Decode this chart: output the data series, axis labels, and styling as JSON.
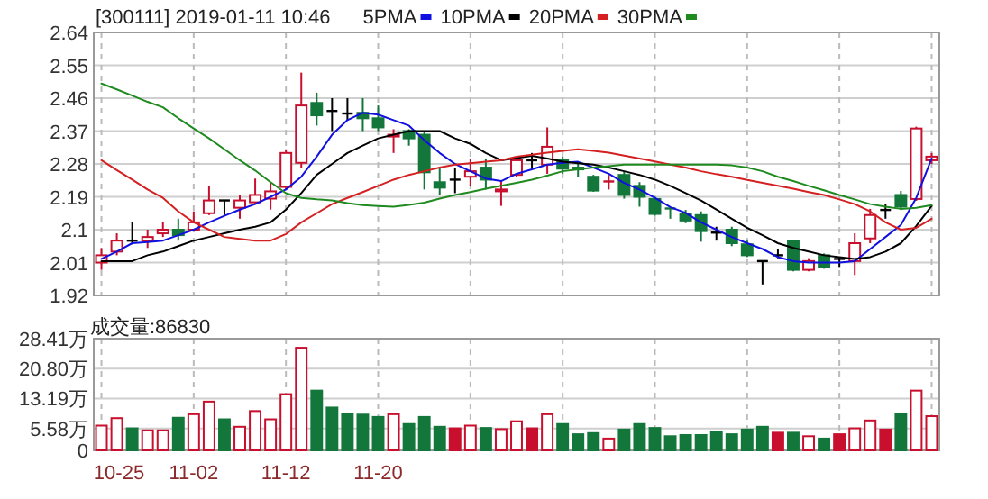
{
  "chart_data": [
    {
      "type": "candlestick",
      "title": "[300111] 2019-01-11 10:46",
      "legend": "top",
      "grid": true,
      "tick_labels": "y",
      "categories": [
        null,
        null,
        null,
        null,
        null,
        null,
        null,
        null,
        null,
        null,
        null,
        null,
        null,
        null,
        null,
        null,
        null,
        null,
        null,
        null,
        null,
        null,
        null,
        null,
        null,
        null,
        null,
        null,
        null,
        null,
        null,
        null,
        null,
        null,
        null,
        null,
        null,
        null,
        null,
        null,
        null,
        null,
        null,
        null,
        null,
        null,
        null,
        null,
        null,
        null,
        null,
        null,
        null,
        null,
        null
      ],
      "ylim": [
        1.92,
        2.64
      ],
      "yticks": [
        1.92,
        2.01,
        2.1,
        2.19,
        2.28,
        2.37,
        2.46,
        2.55,
        2.64
      ],
      "ohlc": [
        [
          2.01,
          2.05,
          1.99,
          2.03
        ],
        [
          2.04,
          2.09,
          2.03,
          2.07
        ],
        [
          2.07,
          2.12,
          2.06,
          2.07
        ],
        [
          2.07,
          2.1,
          2.05,
          2.08
        ],
        [
          2.09,
          2.12,
          2.08,
          2.1
        ],
        [
          2.1,
          2.13,
          2.07,
          2.085
        ],
        [
          2.1,
          2.15,
          2.1,
          2.12
        ],
        [
          2.145,
          2.22,
          2.14,
          2.18
        ],
        [
          2.18,
          2.18,
          2.14,
          2.18
        ],
        [
          2.16,
          2.195,
          2.13,
          2.18
        ],
        [
          2.175,
          2.24,
          2.17,
          2.195
        ],
        [
          2.185,
          2.23,
          2.155,
          2.205
        ],
        [
          2.217,
          2.32,
          2.21,
          2.31
        ],
        [
          2.283,
          2.53,
          2.27,
          2.44
        ],
        [
          2.447,
          2.475,
          2.385,
          2.413
        ],
        [
          2.425,
          2.46,
          2.37,
          2.425
        ],
        [
          2.418,
          2.46,
          2.4,
          2.418
        ],
        [
          2.42,
          2.46,
          2.37,
          2.405
        ],
        [
          2.405,
          2.44,
          2.37,
          2.38
        ],
        [
          2.355,
          2.375,
          2.31,
          2.36
        ],
        [
          2.37,
          2.375,
          2.33,
          2.35
        ],
        [
          2.36,
          2.37,
          2.21,
          2.257
        ],
        [
          2.23,
          2.27,
          2.195,
          2.215
        ],
        [
          2.237,
          2.27,
          2.2,
          2.237
        ],
        [
          2.245,
          2.295,
          2.22,
          2.26
        ],
        [
          2.27,
          2.295,
          2.21,
          2.237
        ],
        [
          2.205,
          2.235,
          2.165,
          2.21
        ],
        [
          2.25,
          2.3,
          2.245,
          2.29
        ],
        [
          2.29,
          2.31,
          2.265,
          2.29
        ],
        [
          2.278,
          2.38,
          2.253,
          2.327
        ],
        [
          2.29,
          2.3,
          2.253,
          2.267
        ],
        [
          2.27,
          2.28,
          2.245,
          2.265
        ],
        [
          2.245,
          2.25,
          2.204,
          2.207
        ],
        [
          2.23,
          2.25,
          2.21,
          2.232
        ],
        [
          2.25,
          2.26,
          2.185,
          2.195
        ],
        [
          2.22,
          2.23,
          2.163,
          2.19
        ],
        [
          2.184,
          2.19,
          2.138,
          2.143
        ],
        [
          2.16,
          2.16,
          2.13,
          2.158
        ],
        [
          2.144,
          2.154,
          2.118,
          2.125
        ],
        [
          2.14,
          2.15,
          2.067,
          2.096
        ],
        [
          2.092,
          2.108,
          2.07,
          2.092
        ],
        [
          2.1,
          2.108,
          2.055,
          2.063
        ],
        [
          2.06,
          2.07,
          2.025,
          2.03
        ],
        [
          2.014,
          2.014,
          1.95,
          2.014
        ],
        [
          2.03,
          2.047,
          2.022,
          2.03
        ],
        [
          2.068,
          2.072,
          1.986,
          1.99
        ],
        [
          1.99,
          2.022,
          1.986,
          2.014
        ],
        [
          2.03,
          2.035,
          1.993,
          1.998
        ],
        [
          2.02,
          2.026,
          1.998,
          2.02
        ],
        [
          2.014,
          2.09,
          1.976,
          2.063
        ],
        [
          2.076,
          2.157,
          2.063,
          2.14
        ],
        [
          2.154,
          2.17,
          2.13,
          2.154
        ],
        [
          2.195,
          2.206,
          2.154,
          2.163
        ],
        [
          2.184,
          2.382,
          2.179,
          2.377
        ],
        [
          2.29,
          2.31,
          2.28,
          2.3
        ]
      ],
      "colors": [
        "#c8102e",
        "#c8102e",
        "#000000",
        "#c8102e",
        "#c8102e",
        "#13773b",
        "#c8102e",
        "#c8102e",
        "#000000",
        "#c8102e",
        "#c8102e",
        "#c8102e",
        "#c8102e",
        "#c8102e",
        "#13773b",
        "#000000",
        "#000000",
        "#13773b",
        "#13773b",
        "#c8102e",
        "#13773b",
        "#13773b",
        "#13773b",
        "#000000",
        "#c8102e",
        "#13773b",
        "#c8102e",
        "#c8102e",
        "#000000",
        "#c8102e",
        "#13773b",
        "#13773b",
        "#13773b",
        "#c8102e",
        "#13773b",
        "#13773b",
        "#13773b",
        "#13773b",
        "#13773b",
        "#13773b",
        "#000000",
        "#13773b",
        "#13773b",
        "#000000",
        "#000000",
        "#13773b",
        "#c8102e",
        "#13773b",
        "#000000",
        "#c8102e",
        "#c8102e",
        "#000000",
        "#13773b",
        "#c8102e",
        "#c8102e"
      ],
      "series": [
        {
          "name": "5PMA",
          "type": "line",
          "color": "#1010e0",
          "values": [
            2.02,
            2.04,
            2.063,
            2.066,
            2.07,
            2.085,
            2.1,
            2.12,
            2.138,
            2.155,
            2.17,
            2.19,
            2.21,
            2.245,
            2.3,
            2.36,
            2.4,
            2.42,
            2.415,
            2.4,
            2.385,
            2.345,
            2.31,
            2.28,
            2.26,
            2.24,
            2.233,
            2.253,
            2.265,
            2.278,
            2.283,
            2.286,
            2.27,
            2.253,
            2.228,
            2.21,
            2.187,
            2.162,
            2.146,
            2.12,
            2.1,
            2.08,
            2.063,
            2.047,
            2.025,
            2.014,
            2.01,
            2.01,
            2.01,
            2.014,
            2.047,
            2.08,
            2.113,
            2.187,
            2.295
          ]
        },
        {
          "name": "10PMA",
          "type": "line",
          "color": "#000000",
          "values": [
            2.014,
            2.014,
            2.014,
            2.03,
            2.04,
            2.055,
            2.07,
            2.08,
            2.09,
            2.1,
            2.108,
            2.12,
            2.155,
            2.2,
            2.25,
            2.28,
            2.31,
            2.33,
            2.35,
            2.36,
            2.37,
            2.37,
            2.37,
            2.35,
            2.335,
            2.31,
            2.29,
            2.296,
            2.302,
            2.295,
            2.286,
            2.282,
            2.278,
            2.27,
            2.26,
            2.25,
            2.237,
            2.22,
            2.2,
            2.18,
            2.155,
            2.13,
            2.105,
            2.085,
            2.063,
            2.05,
            2.04,
            2.03,
            2.025,
            2.02,
            2.025,
            2.04,
            2.063,
            2.11,
            2.165
          ]
        },
        {
          "name": "20PMA",
          "type": "line",
          "color": "#d42020",
          "values": [
            2.29,
            2.263,
            2.237,
            2.21,
            2.187,
            2.15,
            2.12,
            2.1,
            2.08,
            2.075,
            2.07,
            2.07,
            2.088,
            2.12,
            2.145,
            2.17,
            2.187,
            2.203,
            2.22,
            2.237,
            2.25,
            2.26,
            2.27,
            2.278,
            2.282,
            2.286,
            2.29,
            2.3,
            2.305,
            2.311,
            2.316,
            2.32,
            2.316,
            2.311,
            2.303,
            2.295,
            2.287,
            2.278,
            2.27,
            2.26,
            2.252,
            2.245,
            2.236,
            2.228,
            2.22,
            2.212,
            2.203,
            2.195,
            2.183,
            2.17,
            2.15,
            2.12,
            2.1,
            2.105,
            2.13
          ]
        },
        {
          "name": "30PMA",
          "type": "line",
          "color": "#1f8a1f",
          "values": [
            2.5,
            2.484,
            2.467,
            2.45,
            2.435,
            2.405,
            2.377,
            2.35,
            2.32,
            2.29,
            2.262,
            2.23,
            2.2,
            2.187,
            2.183,
            2.18,
            2.173,
            2.167,
            2.165,
            2.163,
            2.168,
            2.174,
            2.185,
            2.195,
            2.203,
            2.212,
            2.22,
            2.228,
            2.237,
            2.248,
            2.26,
            2.265,
            2.27,
            2.274,
            2.278,
            2.278,
            2.278,
            2.278,
            2.278,
            2.278,
            2.278,
            2.276,
            2.27,
            2.26,
            2.245,
            2.233,
            2.22,
            2.208,
            2.195,
            2.183,
            2.17,
            2.163,
            2.157,
            2.16,
            2.167
          ]
        }
      ]
    },
    {
      "type": "bar",
      "title": "成交量:86830",
      "grid": true,
      "categories": [
        "10-25",
        null,
        null,
        null,
        null,
        null,
        "11-02",
        null,
        null,
        null,
        null,
        null,
        "11-12",
        null,
        null,
        null,
        null,
        null,
        "11-20",
        null,
        null,
        null,
        null,
        null,
        null,
        null,
        null,
        null,
        null,
        null,
        null,
        null,
        null,
        null,
        null,
        null,
        null,
        null,
        null,
        null,
        null,
        null,
        null,
        null,
        null,
        null,
        null,
        null,
        null,
        null,
        null,
        null,
        null,
        null,
        null
      ],
      "ylim": [
        0,
        28.41
      ],
      "yticks": [
        0,
        {
          "value": 5.58,
          "label": "5.58万"
        },
        {
          "value": 13.19,
          "label": "13.19万"
        },
        {
          "value": 20.8,
          "label": "20.80万"
        },
        {
          "value": 28.41,
          "label": "28.41万"
        }
      ],
      "values": [
        6.3,
        8.2,
        5.6,
        5.1,
        5.1,
        8.3,
        9.2,
        12.4,
        7.9,
        6.0,
        10.0,
        7.9,
        14.3,
        26.1,
        15.2,
        10.9,
        9.4,
        9.1,
        8.5,
        9.2,
        6.7,
        8.5,
        6.0,
        5.6,
        6.3,
        5.7,
        5.4,
        7.4,
        5.6,
        9.2,
        6.7,
        4.1,
        4.4,
        3.0,
        5.3,
        6.7,
        5.7,
        3.6,
        3.9,
        3.9,
        4.8,
        4.1,
        5.3,
        6.0,
        4.5,
        4.5,
        3.6,
        3.0,
        4.1,
        5.6,
        7.6,
        5.3,
        9.4,
        15.2,
        8.7
      ],
      "colors": [
        "#c8102e",
        "#c8102e",
        "#13773b",
        "#c8102e",
        "#c8102e",
        "#13773b",
        "#c8102e",
        "#c8102e",
        "#13773b",
        "#c8102e",
        "#c8102e",
        "#c8102e",
        "#c8102e",
        "#c8102e",
        "#13773b",
        "#13773b",
        "#13773b",
        "#13773b",
        "#13773b",
        "#c8102e",
        "#13773b",
        "#13773b",
        "#13773b",
        "#c8102e",
        "#c8102e",
        "#13773b",
        "#c8102e",
        "#c8102e",
        "#c8102e",
        "#c8102e",
        "#13773b",
        "#13773b",
        "#13773b",
        "#c8102e",
        "#13773b",
        "#13773b",
        "#13773b",
        "#13773b",
        "#13773b",
        "#13773b",
        "#13773b",
        "#13773b",
        "#13773b",
        "#13773b",
        "#c8102e",
        "#13773b",
        "#c8102e",
        "#13773b",
        "#c8102e",
        "#c8102e",
        "#c8102e",
        "#c8102e",
        "#13773b",
        "#c8102e",
        "#c8102e"
      ]
    }
  ]
}
